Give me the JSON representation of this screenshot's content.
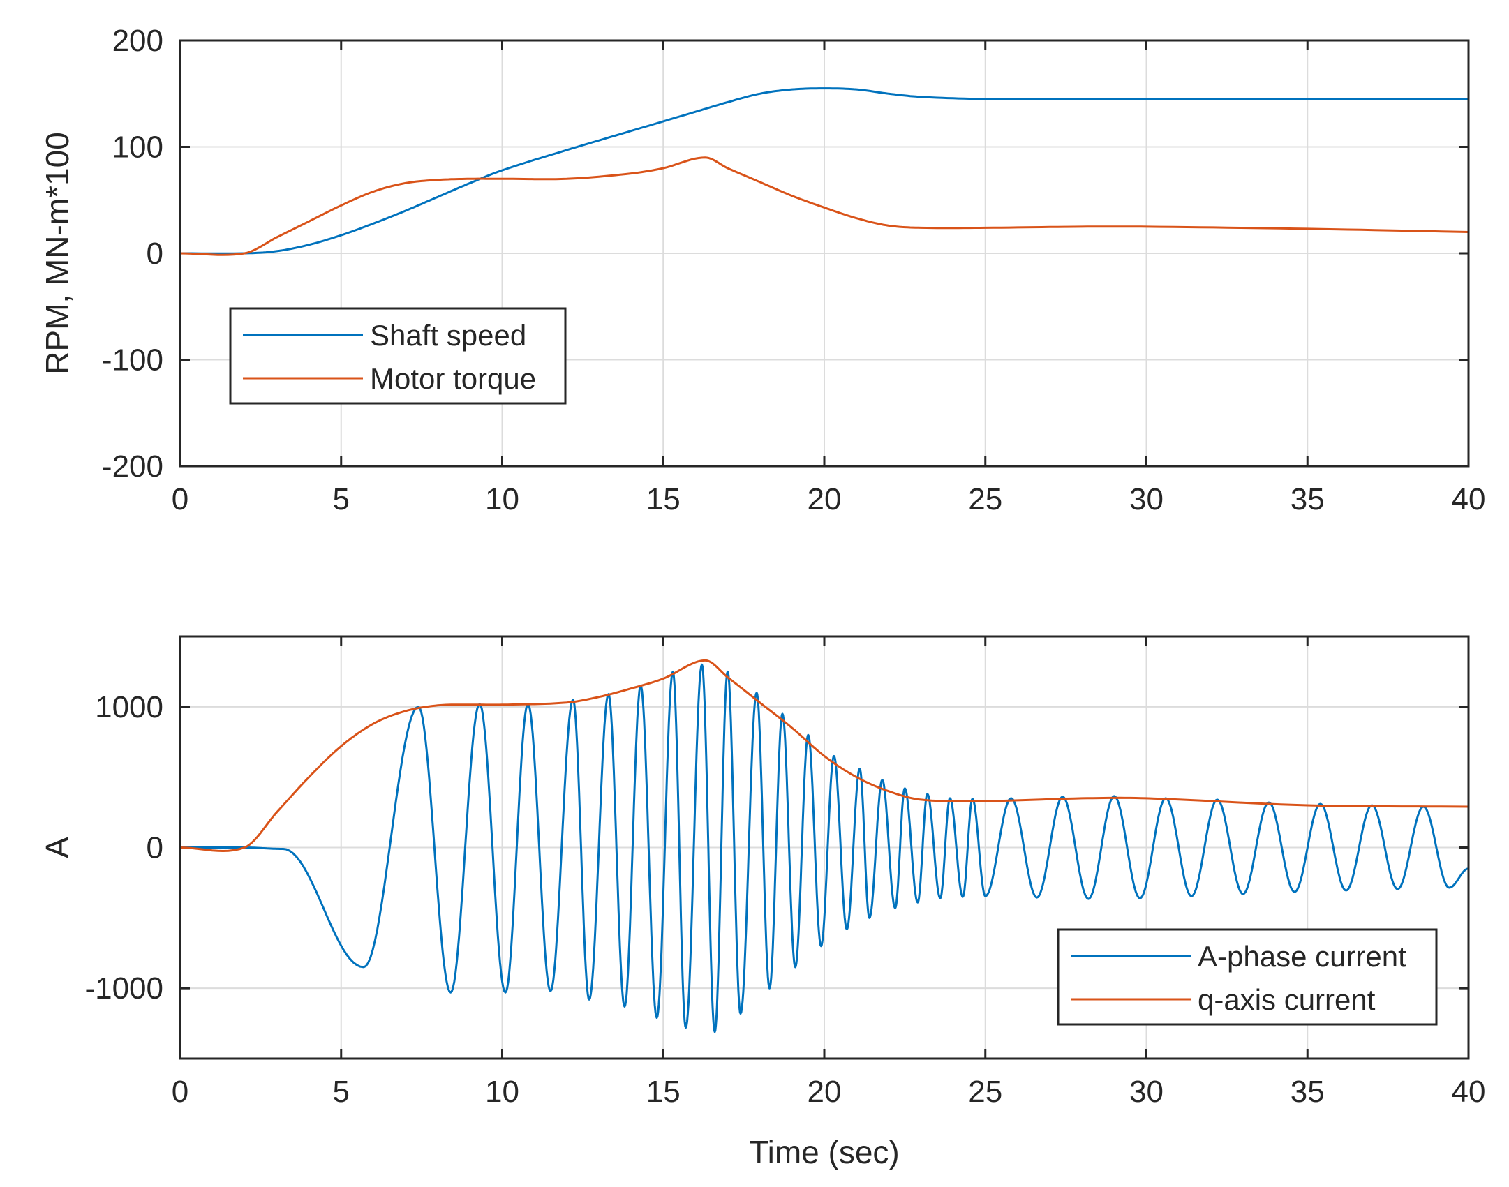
{
  "chart_data": [
    {
      "type": "line",
      "title": "",
      "xlabel": "",
      "ylabel": "RPM, MN-m*100",
      "xlim": [
        0,
        40
      ],
      "ylim": [
        -200,
        200
      ],
      "xticks": [
        "0",
        "5",
        "10",
        "15",
        "20",
        "25",
        "30",
        "35",
        "40"
      ],
      "yticks": [
        "200",
        "100",
        "0",
        "-100",
        "-200"
      ],
      "grid": true,
      "legend_location": "middle-left",
      "series": [
        {
          "name": "Shaft speed",
          "color": "#0072BD",
          "x": [
            0,
            2,
            3,
            4,
            5,
            6,
            7,
            8,
            9,
            10,
            12,
            14,
            16,
            17,
            18,
            19,
            20,
            21,
            22,
            23,
            25,
            28,
            30,
            35,
            40
          ],
          "y": [
            0,
            0,
            2,
            8,
            17,
            28,
            40,
            53,
            66,
            78,
            97,
            115,
            133,
            142,
            150,
            154,
            155,
            154,
            150,
            147,
            145,
            145,
            145,
            145,
            145
          ]
        },
        {
          "name": "Motor torque",
          "color": "#D95319",
          "x": [
            0,
            2,
            3,
            4,
            5,
            6,
            7,
            8,
            9,
            10,
            12,
            14,
            15,
            16.3,
            17,
            18,
            19,
            20,
            21,
            22,
            23,
            25,
            28,
            30,
            35,
            40
          ],
          "y": [
            0,
            0,
            15,
            30,
            45,
            58,
            66,
            69,
            70,
            70,
            70,
            75,
            80,
            90,
            80,
            67,
            54,
            43,
            33,
            26,
            24,
            24,
            25,
            25,
            23,
            20
          ]
        }
      ]
    },
    {
      "type": "line",
      "title": "",
      "xlabel": "Time (sec)",
      "ylabel": "A",
      "xlim": [
        0,
        40
      ],
      "ylim": [
        -1500,
        1500
      ],
      "xticks": [
        "0",
        "5",
        "10",
        "15",
        "20",
        "25",
        "30",
        "35",
        "40"
      ],
      "yticks": [
        "1000",
        "0",
        "-1000"
      ],
      "grid": true,
      "legend_location": "bottom-right",
      "series": [
        {
          "name": "A-phase current",
          "color": "#0072BD",
          "extrema": [
            [
              0,
              0
            ],
            [
              2,
              0
            ],
            [
              3.2,
              -10
            ],
            [
              5.7,
              -850
            ],
            [
              7.4,
              1000
            ],
            [
              8.4,
              -1030
            ],
            [
              9.3,
              1020
            ],
            [
              10.1,
              -1030
            ],
            [
              10.8,
              1020
            ],
            [
              11.5,
              -1020
            ],
            [
              12.2,
              1050
            ],
            [
              12.7,
              -1080
            ],
            [
              13.3,
              1090
            ],
            [
              13.8,
              -1130
            ],
            [
              14.3,
              1150
            ],
            [
              14.8,
              -1210
            ],
            [
              15.3,
              1250
            ],
            [
              15.7,
              -1280
            ],
            [
              16.2,
              1300
            ],
            [
              16.6,
              -1310
            ],
            [
              17.0,
              1250
            ],
            [
              17.4,
              -1180
            ],
            [
              17.9,
              1100
            ],
            [
              18.3,
              -1000
            ],
            [
              18.7,
              950
            ],
            [
              19.1,
              -850
            ],
            [
              19.5,
              800
            ],
            [
              19.9,
              -700
            ],
            [
              20.3,
              650
            ],
            [
              20.7,
              -580
            ],
            [
              21.1,
              560
            ],
            [
              21.4,
              -500
            ],
            [
              21.8,
              480
            ],
            [
              22.2,
              -430
            ],
            [
              22.5,
              420
            ],
            [
              22.9,
              -390
            ],
            [
              23.2,
              380
            ],
            [
              23.6,
              -360
            ],
            [
              23.9,
              350
            ],
            [
              24.3,
              -350
            ],
            [
              24.6,
              345
            ],
            [
              25.0,
              -345
            ],
            [
              25.8,
              350
            ],
            [
              26.6,
              -355
            ],
            [
              27.4,
              360
            ],
            [
              28.2,
              -365
            ],
            [
              29.0,
              365
            ],
            [
              29.8,
              -360
            ],
            [
              30.6,
              350
            ],
            [
              31.4,
              -345
            ],
            [
              32.2,
              340
            ],
            [
              33.0,
              -330
            ],
            [
              33.8,
              320
            ],
            [
              34.6,
              -315
            ],
            [
              35.4,
              310
            ],
            [
              36.2,
              -305
            ],
            [
              37.0,
              300
            ],
            [
              37.8,
              -295
            ],
            [
              38.6,
              290
            ],
            [
              39.4,
              -285
            ],
            [
              40,
              -150
            ]
          ]
        },
        {
          "name": "q-axis current",
          "color": "#D95319",
          "x": [
            0,
            2,
            3,
            4,
            5,
            6,
            7,
            8,
            9,
            10,
            12,
            13,
            14,
            15,
            16.3,
            17,
            18,
            19,
            20,
            21,
            22,
            23,
            25,
            28,
            30,
            35,
            40
          ],
          "y": [
            0,
            0,
            250,
            500,
            720,
            880,
            970,
            1010,
            1015,
            1015,
            1030,
            1070,
            1130,
            1200,
            1330,
            1210,
            1030,
            850,
            650,
            500,
            400,
            340,
            330,
            350,
            350,
            300,
            290
          ]
        }
      ]
    }
  ]
}
